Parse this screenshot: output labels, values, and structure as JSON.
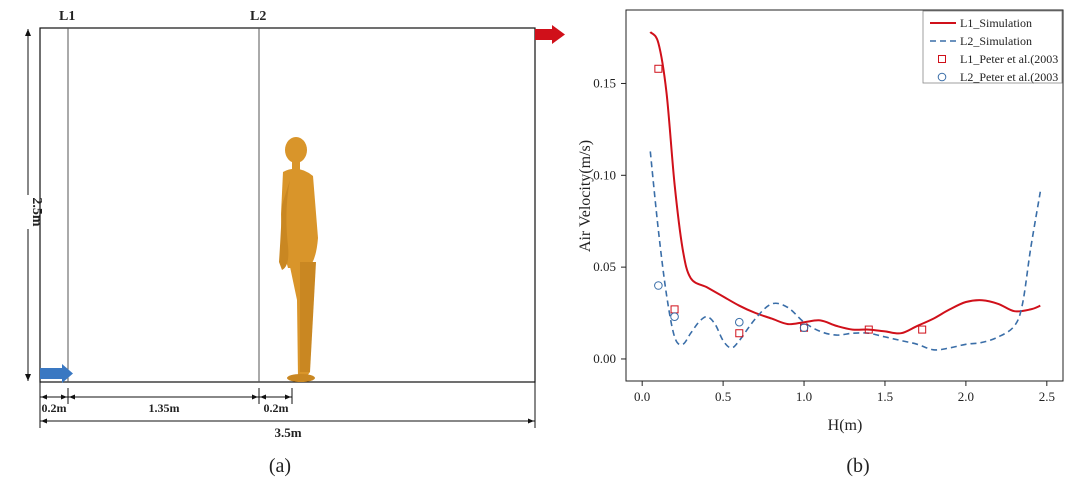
{
  "panel_a": {
    "caption": "(a)",
    "line_labels": [
      "L1",
      "L2"
    ],
    "height_label": "2.5m",
    "dims": [
      "0.2m",
      "1.35m",
      "0.2m"
    ],
    "total_width": "3.5m",
    "colors": {
      "inlet": "#3a78c2",
      "outlet": "#d0101a",
      "figure": "#d9952a"
    }
  },
  "panel_b": {
    "caption": "(b)"
  },
  "chart_data": {
    "type": "line",
    "xlabel": "H(m)",
    "ylabel": "Air Velocity(m/s)",
    "xlim": [
      -0.1,
      2.6
    ],
    "ylim": [
      -0.012,
      0.19
    ],
    "xticks": [
      0.0,
      0.5,
      1.0,
      1.5,
      2.0,
      2.5
    ],
    "xtick_labels": [
      "0.0",
      "0.5",
      "1.0",
      "1.5",
      "2.0",
      "2.5"
    ],
    "yticks": [
      0.0,
      0.05,
      0.1,
      0.15
    ],
    "ytick_labels": [
      "0.00",
      "0.05",
      "0.10",
      "0.15"
    ],
    "legend_position": "top-right",
    "series": [
      {
        "name": "L1_Simulation",
        "kind": "line",
        "color": "#d0101a",
        "dash": "none",
        "x": [
          0.05,
          0.1,
          0.15,
          0.2,
          0.25,
          0.3,
          0.4,
          0.5,
          0.6,
          0.7,
          0.8,
          0.9,
          1.0,
          1.1,
          1.2,
          1.3,
          1.4,
          1.5,
          1.6,
          1.7,
          1.8,
          1.9,
          2.0,
          2.1,
          2.2,
          2.3,
          2.4,
          2.46
        ],
        "y": [
          0.178,
          0.172,
          0.145,
          0.095,
          0.06,
          0.044,
          0.039,
          0.034,
          0.029,
          0.025,
          0.022,
          0.019,
          0.02,
          0.021,
          0.018,
          0.016,
          0.016,
          0.015,
          0.014,
          0.018,
          0.022,
          0.027,
          0.031,
          0.032,
          0.03,
          0.026,
          0.027,
          0.029
        ]
      },
      {
        "name": "L2_Simulation",
        "kind": "line",
        "color": "#3a6ea8",
        "dash": "6,4",
        "x": [
          0.05,
          0.1,
          0.15,
          0.2,
          0.25,
          0.3,
          0.35,
          0.4,
          0.45,
          0.5,
          0.55,
          0.6,
          0.7,
          0.8,
          0.9,
          1.0,
          1.1,
          1.2,
          1.3,
          1.4,
          1.5,
          1.6,
          1.7,
          1.8,
          1.9,
          2.0,
          2.1,
          2.2,
          2.3,
          2.35,
          2.4,
          2.46
        ],
        "y": [
          0.113,
          0.07,
          0.035,
          0.012,
          0.008,
          0.014,
          0.02,
          0.023,
          0.019,
          0.01,
          0.006,
          0.01,
          0.022,
          0.03,
          0.028,
          0.02,
          0.015,
          0.013,
          0.014,
          0.014,
          0.012,
          0.01,
          0.008,
          0.005,
          0.006,
          0.008,
          0.009,
          0.012,
          0.018,
          0.03,
          0.06,
          0.091
        ]
      },
      {
        "name": "L1_Peter et al.(2003",
        "kind": "markers",
        "marker": "square",
        "color": "#d0101a",
        "x": [
          0.1,
          0.2,
          0.6,
          1.0,
          1.4,
          1.73
        ],
        "y": [
          0.158,
          0.027,
          0.014,
          0.017,
          0.016,
          0.016
        ]
      },
      {
        "name": "L2_Peter et al.(2003",
        "kind": "markers",
        "marker": "circle",
        "color": "#3a6ea8",
        "x": [
          0.1,
          0.2,
          0.6,
          1.0
        ],
        "y": [
          0.04,
          0.023,
          0.02,
          0.017
        ]
      }
    ]
  }
}
